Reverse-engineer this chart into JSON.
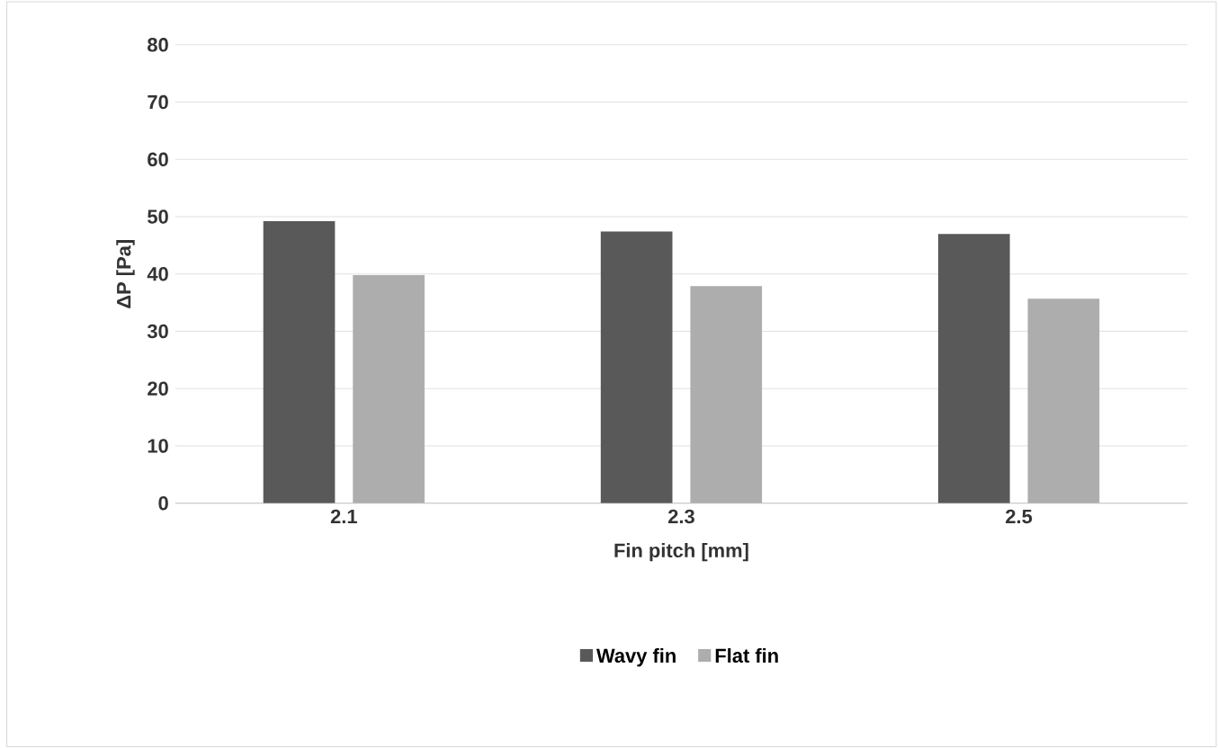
{
  "chart_data": {
    "type": "bar",
    "xlabel": "Fin pitch [mm]",
    "ylabel": "ΔP [Pa]",
    "categories": [
      "2.1",
      "2.3",
      "2.5"
    ],
    "series": [
      {
        "name": "Wavy fin",
        "color": "#595959",
        "values": [
          49.2,
          47.4,
          47.0
        ]
      },
      {
        "name": "Flat fin",
        "color": "#adadad",
        "values": [
          39.8,
          37.9,
          35.7
        ]
      }
    ],
    "ylim": [
      0,
      80
    ],
    "yticks": [
      0,
      10,
      20,
      30,
      40,
      50,
      60,
      70,
      80
    ],
    "grid": "y",
    "legend": "bottom"
  }
}
